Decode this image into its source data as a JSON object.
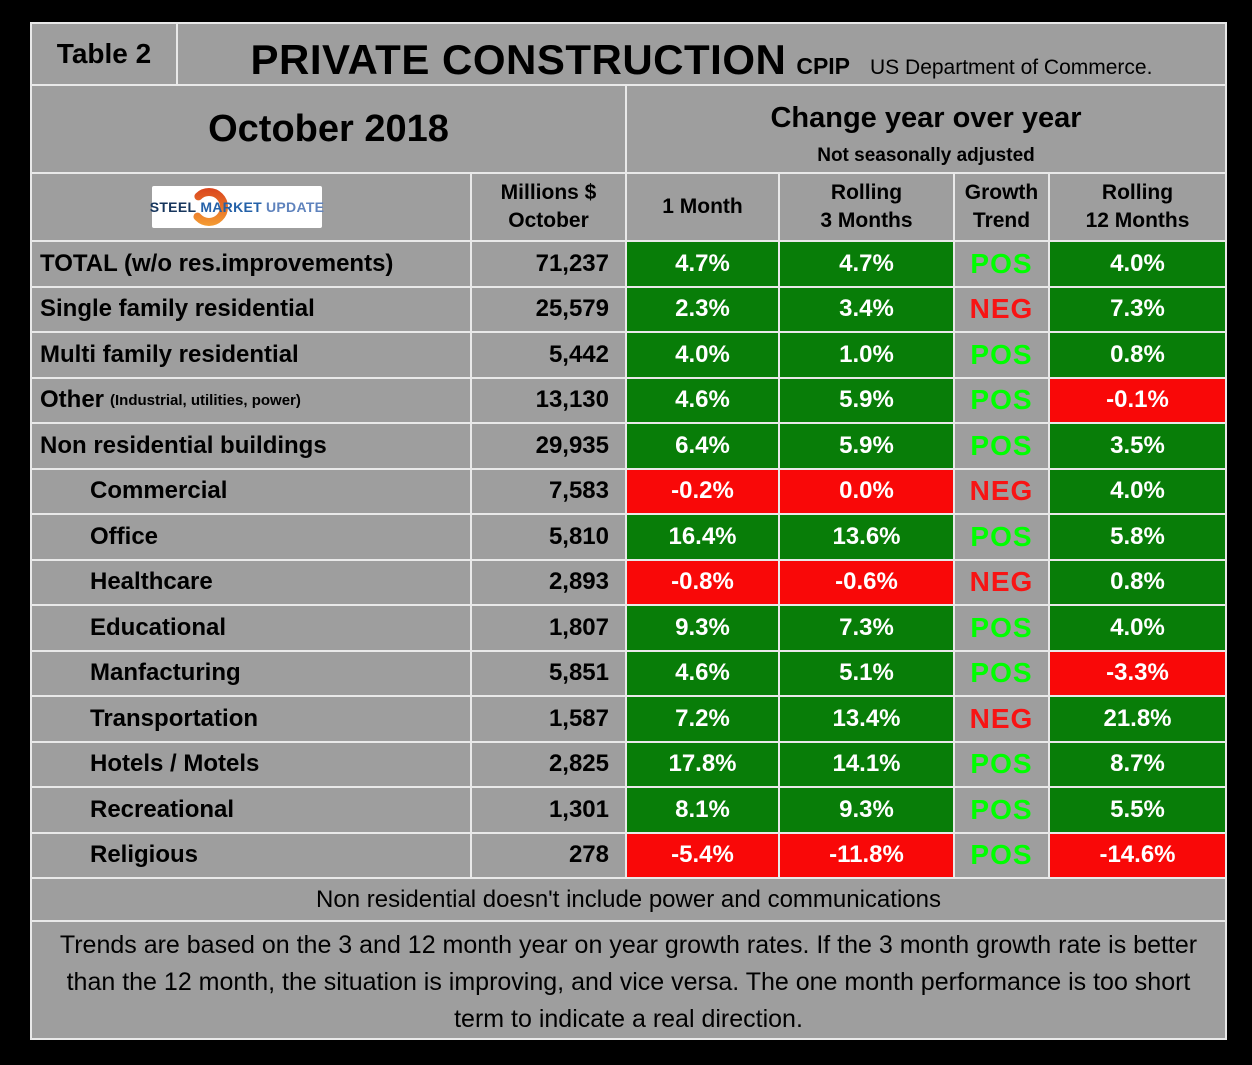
{
  "header": {
    "table_label": "Table 2",
    "title": "PRIVATE CONSTRUCTION",
    "cpip": "CPIP",
    "source": "US Department of Commerce.",
    "month": "October 2018",
    "change_title": "Change year over year",
    "change_subtitle": "Not seasonally adjusted"
  },
  "logo": {
    "word1": "STEEL",
    "word2": "MARKET",
    "word3": "UPDATE"
  },
  "columns": {
    "values_line1": "Millions $",
    "values_line2": "October",
    "m1": "1 Month",
    "m3_line1": "Rolling",
    "m3_line2": "3 Months",
    "trend_line1": "Growth",
    "trend_line2": "Trend",
    "m12_line1": "Rolling",
    "m12_line2": "12 Months"
  },
  "chart_data": {
    "type": "table",
    "title": "Private Construction CPIP, October 2018, change year over year (not seasonally adjusted)",
    "columns": [
      "Category",
      "Millions $ October",
      "1 Month",
      "Rolling 3 Months",
      "Growth Trend",
      "Rolling 12 Months"
    ],
    "rows": [
      {
        "label": "TOTAL (w/o res.improvements)",
        "note": "",
        "indent": false,
        "value": "71,237",
        "m1": "4.7%",
        "m1_bg": "green",
        "m3": "4.7%",
        "m3_bg": "green",
        "trend": "POS",
        "m12": "4.0%",
        "m12_bg": "green"
      },
      {
        "label": "Single family residential",
        "note": "",
        "indent": false,
        "value": "25,579",
        "m1": "2.3%",
        "m1_bg": "green",
        "m3": "3.4%",
        "m3_bg": "green",
        "trend": "NEG",
        "m12": "7.3%",
        "m12_bg": "green"
      },
      {
        "label": "Multi family residential",
        "note": "",
        "indent": false,
        "value": "5,442",
        "m1": "4.0%",
        "m1_bg": "green",
        "m3": "1.0%",
        "m3_bg": "green",
        "trend": "POS",
        "m12": "0.8%",
        "m12_bg": "green"
      },
      {
        "label": "Other",
        "note": "(Industrial, utilities, power)",
        "indent": false,
        "value": "13,130",
        "m1": "4.6%",
        "m1_bg": "green",
        "m3": "5.9%",
        "m3_bg": "green",
        "trend": "POS",
        "m12": "-0.1%",
        "m12_bg": "red"
      },
      {
        "label": "Non residential buildings",
        "note": "",
        "indent": false,
        "value": "29,935",
        "m1": "6.4%",
        "m1_bg": "green",
        "m3": "5.9%",
        "m3_bg": "green",
        "trend": "POS",
        "m12": "3.5%",
        "m12_bg": "green"
      },
      {
        "label": "Commercial",
        "note": "",
        "indent": true,
        "value": "7,583",
        "m1": "-0.2%",
        "m1_bg": "red",
        "m3": "0.0%",
        "m3_bg": "red",
        "trend": "NEG",
        "m12": "4.0%",
        "m12_bg": "green"
      },
      {
        "label": "Office",
        "note": "",
        "indent": true,
        "value": "5,810",
        "m1": "16.4%",
        "m1_bg": "green",
        "m3": "13.6%",
        "m3_bg": "green",
        "trend": "POS",
        "m12": "5.8%",
        "m12_bg": "green"
      },
      {
        "label": "Healthcare",
        "note": "",
        "indent": true,
        "value": "2,893",
        "m1": "-0.8%",
        "m1_bg": "red",
        "m3": "-0.6%",
        "m3_bg": "red",
        "trend": "NEG",
        "m12": "0.8%",
        "m12_bg": "green"
      },
      {
        "label": "Educational",
        "note": "",
        "indent": true,
        "value": "1,807",
        "m1": "9.3%",
        "m1_bg": "green",
        "m3": "7.3%",
        "m3_bg": "green",
        "trend": "POS",
        "m12": "4.0%",
        "m12_bg": "green"
      },
      {
        "label": "Manfacturing",
        "note": "",
        "indent": true,
        "value": "5,851",
        "m1": "4.6%",
        "m1_bg": "green",
        "m3": "5.1%",
        "m3_bg": "green",
        "trend": "POS",
        "m12": "-3.3%",
        "m12_bg": "red"
      },
      {
        "label": "Transportation",
        "note": "",
        "indent": true,
        "value": "1,587",
        "m1": "7.2%",
        "m1_bg": "green",
        "m3": "13.4%",
        "m3_bg": "green",
        "trend": "NEG",
        "m12": "21.8%",
        "m12_bg": "green"
      },
      {
        "label": "Hotels / Motels",
        "note": "",
        "indent": true,
        "value": "2,825",
        "m1": "17.8%",
        "m1_bg": "green",
        "m3": "14.1%",
        "m3_bg": "green",
        "trend": "POS",
        "m12": "8.7%",
        "m12_bg": "green"
      },
      {
        "label": "Recreational",
        "note": "",
        "indent": true,
        "value": "1,301",
        "m1": "8.1%",
        "m1_bg": "green",
        "m3": "9.3%",
        "m3_bg": "green",
        "trend": "POS",
        "m12": "5.5%",
        "m12_bg": "green"
      },
      {
        "label": "Religious",
        "note": "",
        "indent": true,
        "value": "278",
        "m1": "-5.4%",
        "m1_bg": "red",
        "m3": "-11.8%",
        "m3_bg": "red",
        "trend": "POS",
        "m12": "-14.6%",
        "m12_bg": "red"
      }
    ]
  },
  "footnotes": {
    "note1": "Non residential doesn't include power and communications",
    "note2": "Trends are based on the 3 and 12 month year on year growth rates. If the 3 month growth rate is better than the 12 month, the situation is improving, and vice versa. The one month performance is too short term to indicate a real direction."
  },
  "colors": {
    "frame_black": "#000000",
    "background_gray": "#9e9e9e",
    "grid_line": "#e9e9e9",
    "positive_cell": "#087d08",
    "negative_cell": "#f90808",
    "trend_positive_text": "#00ff00",
    "trend_negative_text": "#f81414",
    "logo_orange": "#e8611c",
    "logo_orange_light": "#f6a234",
    "logo_navy": "#17365d",
    "logo_blue": "#2461a8",
    "logo_lightblue": "#5f83bd"
  }
}
